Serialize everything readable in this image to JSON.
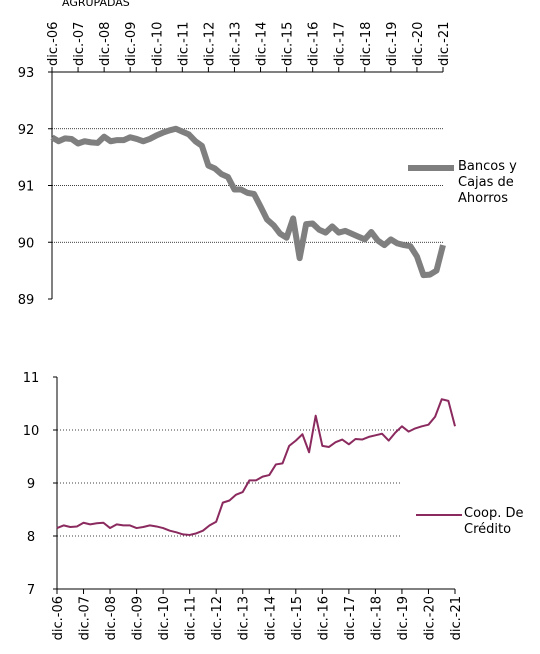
{
  "page_title": "AGRUPADAS",
  "chart_data": [
    {
      "type": "line",
      "categories": [
        "dic.-06",
        null,
        null,
        null,
        "dic.-07",
        null,
        null,
        null,
        "dic.-08",
        null,
        null,
        null,
        "dic.-09",
        null,
        null,
        null,
        "dic.-10",
        null,
        null,
        null,
        "dic.-11",
        null,
        null,
        null,
        "dic.-12",
        null,
        null,
        null,
        "dic.-13",
        null,
        null,
        null,
        "dic.-14",
        null,
        null,
        null,
        "dic.-15",
        null,
        null,
        null,
        "dic.-16",
        null,
        null,
        null,
        "dic.-17",
        null,
        null,
        null,
        "dic.-18",
        null,
        null,
        null,
        "dic.-19",
        null,
        null,
        null,
        "dic.-20",
        null,
        null,
        null,
        "dic.-21"
      ],
      "series": [
        {
          "name": "Bancos y Cajas de Ahorros",
          "color": "#7f7f7f",
          "values": [
            91.85,
            91.78,
            91.83,
            91.82,
            91.74,
            91.78,
            91.76,
            91.75,
            91.86,
            91.78,
            91.8,
            91.8,
            91.85,
            91.82,
            91.78,
            91.82,
            91.88,
            91.93,
            91.97,
            92.0,
            91.95,
            91.9,
            91.78,
            91.7,
            91.35,
            91.3,
            91.2,
            91.15,
            90.93,
            90.93,
            90.87,
            90.85,
            90.63,
            90.4,
            90.3,
            90.15,
            90.08,
            90.42,
            89.72,
            90.32,
            90.33,
            90.22,
            90.17,
            90.28,
            90.17,
            90.2,
            90.15,
            90.1,
            90.05,
            90.18,
            90.03,
            89.95,
            90.05,
            89.98,
            89.95,
            89.93,
            89.75,
            89.42,
            89.43,
            89.5,
            89.95
          ]
        }
      ],
      "ylim": [
        89,
        93
      ],
      "yticks": [
        89,
        90,
        91,
        92,
        93
      ],
      "grid": true
    },
    {
      "type": "line",
      "categories": [
        "dic.-06",
        null,
        null,
        null,
        "dic.-07",
        null,
        null,
        null,
        "dic.-08",
        null,
        null,
        null,
        "dic.-09",
        null,
        null,
        null,
        "dic.-10",
        null,
        null,
        null,
        "dic.-11",
        null,
        null,
        null,
        "dic.-12",
        null,
        null,
        null,
        "dic.-13",
        null,
        null,
        null,
        "dic.-14",
        null,
        null,
        null,
        "dic.-15",
        null,
        null,
        null,
        "dic.-16",
        null,
        null,
        null,
        "dic.-17",
        null,
        null,
        null,
        "dic.-18",
        null,
        null,
        null,
        "dic.-19",
        null,
        null,
        null,
        "dic.-20",
        null,
        null,
        null,
        "dic.-21"
      ],
      "series": [
        {
          "name": "Coop. De Crédito",
          "color": "#8b2a5e",
          "values": [
            8.15,
            8.2,
            8.17,
            8.18,
            8.25,
            8.22,
            8.24,
            8.25,
            8.15,
            8.22,
            8.2,
            8.2,
            8.15,
            8.17,
            8.2,
            8.18,
            8.15,
            8.1,
            8.07,
            8.03,
            8.02,
            8.05,
            8.1,
            8.2,
            8.27,
            8.63,
            8.67,
            8.78,
            8.83,
            9.05,
            9.05,
            9.12,
            9.15,
            9.35,
            9.37,
            9.7,
            9.8,
            9.92,
            9.58,
            10.27,
            9.7,
            9.68,
            9.77,
            9.82,
            9.73,
            9.83,
            9.82,
            9.87,
            9.9,
            9.93,
            9.8,
            9.95,
            10.07,
            9.97,
            10.03,
            10.07,
            10.1,
            10.25,
            10.58,
            10.55,
            10.07
          ]
        }
      ],
      "ylim": [
        7,
        11
      ],
      "yticks": [
        7,
        8,
        9,
        10,
        11
      ],
      "grid": true
    }
  ]
}
